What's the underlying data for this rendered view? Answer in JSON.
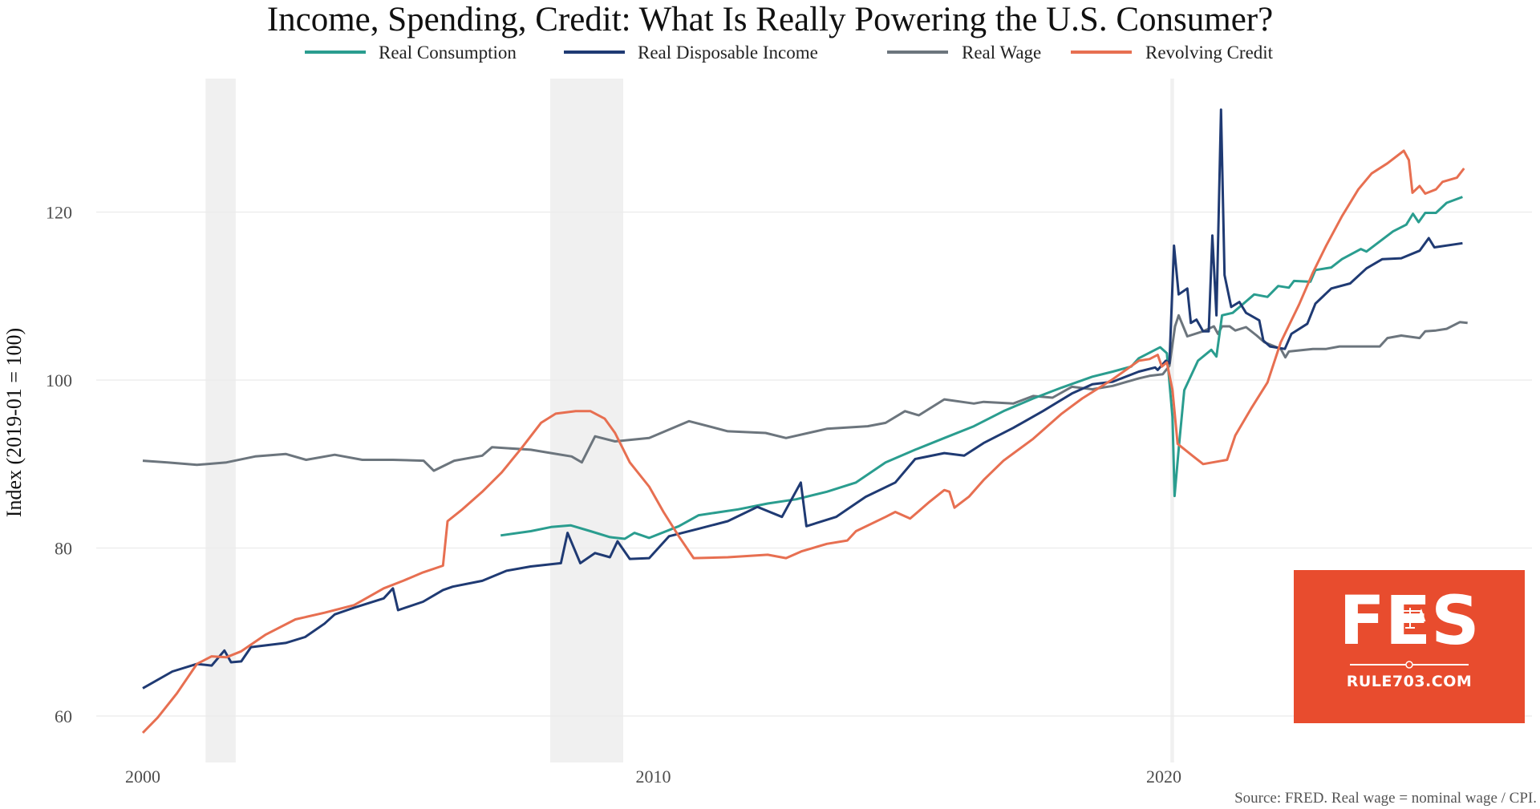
{
  "chart_data": {
    "type": "line",
    "title": "Income, Spending, Credit: What Is Really Powering the U.S. Consumer?",
    "ylabel": "Index (2019-01 = 100)",
    "xlabel": "",
    "xlim": [
      1999.5,
      2026.9
    ],
    "ylim": [
      54.8,
      136.3
    ],
    "x_ticks": [
      2000,
      2010,
      2020
    ],
    "x_tick_labels": [
      "2000",
      "2010",
      "2020"
    ],
    "y_ticks": [
      60,
      80,
      100,
      120
    ],
    "y_tick_labels": [
      "60",
      "80",
      "100",
      "120"
    ],
    "grid": true,
    "legend_position": "top",
    "shaded_periods": [
      [
        2001.23,
        2001.82
      ],
      [
        2007.98,
        2009.41
      ],
      [
        2020.13,
        2020.2
      ]
    ],
    "source": "Source: FRED. Real wage = nominal wage / CPI.",
    "series": [
      {
        "name": "Real Consumption",
        "color": "#2a9d8f",
        "x": [
          2007.01,
          2007.6,
          2008.0,
          2008.38,
          2008.77,
          2009.15,
          2009.44,
          2009.63,
          2009.92,
          2010.5,
          2010.89,
          2011.66,
          2012.24,
          2012.8,
          2013.4,
          2013.97,
          2014.55,
          2015.13,
          2015.7,
          2016.28,
          2016.86,
          2017.44,
          2018.0,
          2018.6,
          2019.0,
          2019.36,
          2019.51,
          2019.93,
          2020.06,
          2020.17,
          2020.21,
          2020.3,
          2020.4,
          2020.67,
          2020.93,
          2021.03,
          2021.14,
          2021.35,
          2021.77,
          2022.03,
          2022.24,
          2022.45,
          2022.55,
          2022.87,
          2022.97,
          2023.28,
          2023.49,
          2023.86,
          2023.97,
          2024.49,
          2024.75,
          2024.88,
          2024.99,
          2025.12,
          2025.33,
          2025.54,
          2025.85
        ],
        "y": [
          81.5,
          82,
          82.5,
          82.7,
          82,
          81.3,
          81.1,
          81.8,
          81.2,
          82.6,
          83.9,
          84.6,
          85.3,
          85.8,
          86.7,
          87.8,
          90.2,
          91.7,
          93.1,
          94.5,
          96.3,
          97.8,
          99.1,
          100.4,
          101,
          101.6,
          102.6,
          103.9,
          103.2,
          95.6,
          86.2,
          92.4,
          98.8,
          102.3,
          103.6,
          102.8,
          107.7,
          108,
          110.2,
          109.9,
          111.2,
          111,
          111.8,
          111.7,
          113.1,
          113.4,
          114.4,
          115.6,
          115.3,
          117.7,
          118.5,
          119.8,
          118.8,
          119.9,
          119.9,
          121.1,
          121.8
        ]
      },
      {
        "name": "Real Disposable Income",
        "color": "#1f3a73",
        "x": [
          2000,
          2000.58,
          2001.06,
          2001.35,
          2001.6,
          2001.73,
          2001.93,
          2002.12,
          2002.8,
          2003.18,
          2003.56,
          2003.76,
          2004.14,
          2004.72,
          2004.9,
          2005.0,
          2005.49,
          2005.88,
          2006.07,
          2006.65,
          2007.13,
          2007.6,
          2008.19,
          2008.32,
          2008.57,
          2008.86,
          2009.15,
          2009.3,
          2009.54,
          2009.92,
          2010.31,
          2010.89,
          2011.46,
          2012.04,
          2012.52,
          2012.89,
          2013.0,
          2013.58,
          2014.16,
          2014.74,
          2015.13,
          2015.7,
          2016.09,
          2016.47,
          2017.05,
          2017.63,
          2018.2,
          2018.6,
          2019.0,
          2019.51,
          2019.83,
          2019.88,
          2020.04,
          2020.11,
          2020.2,
          2020.29,
          2020.46,
          2020.53,
          2020.64,
          2020.77,
          2020.88,
          2020.95,
          2021.03,
          2021.12,
          2021.19,
          2021.32,
          2021.48,
          2021.61,
          2021.87,
          2021.95,
          2022.08,
          2022.37,
          2022.5,
          2022.81,
          2022.97,
          2023.28,
          2023.65,
          2023.97,
          2024.28,
          2024.65,
          2025.01,
          2025.19,
          2025.3,
          2025.85
        ],
        "y": [
          63.3,
          65.3,
          66.2,
          66,
          67.8,
          66.4,
          66.5,
          68.2,
          68.7,
          69.4,
          71,
          72.1,
          72.9,
          74,
          75.2,
          72.6,
          73.6,
          75,
          75.4,
          76.1,
          77.3,
          77.8,
          78.2,
          81.8,
          78.2,
          79.4,
          78.9,
          80.8,
          78.7,
          78.8,
          81.4,
          82.3,
          83.2,
          84.9,
          83.7,
          87.8,
          82.6,
          83.7,
          86.1,
          87.8,
          90.6,
          91.3,
          91,
          92.5,
          94.3,
          96.3,
          98.4,
          99.5,
          99.8,
          101,
          101.5,
          101.2,
          102.3,
          102,
          116,
          110.2,
          110.9,
          106.8,
          107.2,
          105.8,
          105.8,
          117.2,
          107.7,
          132.2,
          112.5,
          108.7,
          109.3,
          108,
          107.1,
          104.7,
          104,
          103.7,
          105.5,
          106.7,
          109.1,
          110.9,
          111.5,
          113.3,
          114.4,
          114.5,
          115.4,
          116.9,
          115.8,
          116.3
        ]
      },
      {
        "name": "Real Wage",
        "color": "#6c757d",
        "x": [
          2000,
          2000.48,
          2001.06,
          2001.64,
          2002.2,
          2002.8,
          2003.2,
          2003.76,
          2004.3,
          2004.9,
          2005.5,
          2005.7,
          2006.1,
          2006.65,
          2006.84,
          2007.6,
          2008.0,
          2008.4,
          2008.6,
          2008.86,
          2009.25,
          2009.92,
          2010.5,
          2010.7,
          2011.46,
          2012.2,
          2012.6,
          2013.4,
          2014.2,
          2014.55,
          2014.93,
          2015.2,
          2015.7,
          2016.28,
          2016.47,
          2017.05,
          2017.44,
          2017.82,
          2018.2,
          2018.6,
          2019.0,
          2019.51,
          2019.72,
          2019.98,
          2020.11,
          2020.22,
          2020.29,
          2020.46,
          2020.77,
          2020.98,
          2021.06,
          2021.14,
          2021.29,
          2021.4,
          2021.61,
          2021.82,
          2021.97,
          2022.29,
          2022.38,
          2022.45,
          2022.92,
          2023.18,
          2023.44,
          2023.97,
          2024.23,
          2024.38,
          2024.65,
          2025.01,
          2025.12,
          2025.33,
          2025.54,
          2025.8,
          2025.95
        ],
        "y": [
          90.4,
          90.2,
          89.9,
          90.2,
          90.9,
          91.2,
          90.5,
          91.1,
          90.5,
          90.5,
          90.4,
          89.2,
          90.4,
          91,
          92,
          91.7,
          91.3,
          90.9,
          90.2,
          93.3,
          92.7,
          93.1,
          94.6,
          95.1,
          93.9,
          93.7,
          93.1,
          94.2,
          94.5,
          94.9,
          96.3,
          95.8,
          97.7,
          97.2,
          97.4,
          97.2,
          98.1,
          97.9,
          99.2,
          98.9,
          99.3,
          100.2,
          100.5,
          100.7,
          101.7,
          106.4,
          107.7,
          105.2,
          105.8,
          106.4,
          105.5,
          106.4,
          106.4,
          105.9,
          106.3,
          105.3,
          104.5,
          103.7,
          102.7,
          103.4,
          103.7,
          103.7,
          104,
          104,
          104,
          105,
          105.3,
          105,
          105.8,
          105.9,
          106.1,
          106.9,
          106.8
        ]
      },
      {
        "name": "Revolving Credit",
        "color": "#e76f51",
        "x": [
          2000,
          2000.29,
          2000.67,
          2001.06,
          2001.35,
          2001.64,
          2001.93,
          2002.41,
          2002.99,
          2003.56,
          2004.14,
          2004.72,
          2005.1,
          2005.49,
          2005.88,
          2005.97,
          2006.26,
          2006.65,
          2007.03,
          2007.42,
          2007.8,
          2008.09,
          2008.48,
          2008.77,
          2009.05,
          2009.25,
          2009.54,
          2009.92,
          2010.2,
          2010.5,
          2010.79,
          2011.46,
          2012.24,
          2012.6,
          2012.9,
          2013.4,
          2013.8,
          2013.97,
          2014.55,
          2014.74,
          2015.03,
          2015.41,
          2015.7,
          2015.8,
          2015.9,
          2016.18,
          2016.47,
          2016.86,
          2017.44,
          2018.0,
          2018.4,
          2019.0,
          2019.51,
          2019.72,
          2019.88,
          2019.96,
          2020.06,
          2020.17,
          2020.27,
          2020.56,
          2020.77,
          2021.24,
          2021.4,
          2021.71,
          2022.03,
          2022.29,
          2022.65,
          2022.92,
          2023.18,
          2023.49,
          2023.81,
          2024.07,
          2024.38,
          2024.7,
          2024.8,
          2024.87,
          2025.01,
          2025.12,
          2025.33,
          2025.46,
          2025.74,
          2025.88
        ],
        "y": [
          58,
          59.8,
          62.7,
          66.2,
          67.1,
          67,
          67.7,
          69.7,
          71.5,
          72.3,
          73.2,
          75.2,
          76.1,
          77.1,
          77.9,
          83.2,
          84.6,
          86.7,
          89,
          91.9,
          94.9,
          96,
          96.3,
          96.3,
          95.4,
          93.7,
          90.2,
          87.3,
          84.3,
          81.4,
          78.8,
          78.9,
          79.2,
          78.8,
          79.6,
          80.5,
          80.9,
          82,
          83.7,
          84.3,
          83.5,
          85.5,
          86.9,
          86.7,
          84.8,
          86.1,
          88.1,
          90.4,
          93,
          96,
          97.8,
          100.1,
          102.3,
          102.5,
          103,
          101.6,
          102.1,
          98.8,
          92.4,
          91,
          90,
          90.5,
          93.4,
          96.6,
          99.7,
          104.5,
          109,
          112.8,
          116,
          119.5,
          122.7,
          124.6,
          125.8,
          127.3,
          126.2,
          122.3,
          123.1,
          122.2,
          122.7,
          123.6,
          124.1,
          125.2
        ]
      }
    ]
  },
  "logo": {
    "wordmark": "FES",
    "url_text": "RULE703.COM",
    "background_color": "#e84c2e"
  }
}
